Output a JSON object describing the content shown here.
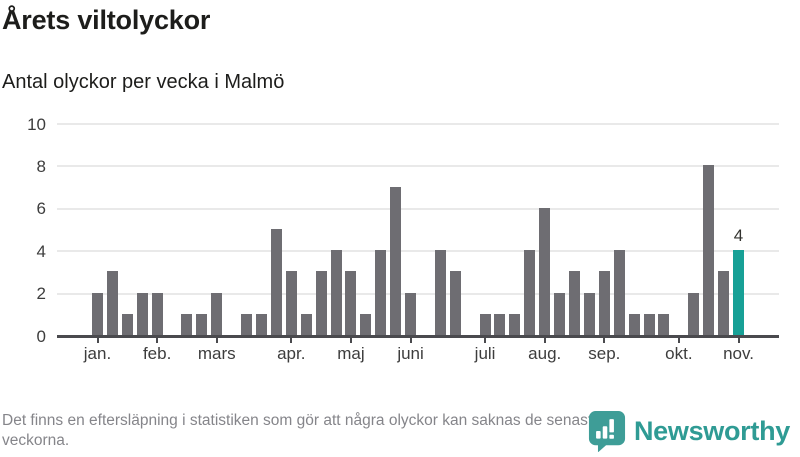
{
  "header": {
    "title": "Årets viltolyckor",
    "subtitle": "Antal olyckor per vecka i Malmö"
  },
  "chart_data": {
    "type": "bar",
    "title": "Årets viltolyckor",
    "subtitle": "Antal olyckor per vecka i Malmö",
    "ylabel": "Antal olyckor per vecka",
    "ylim": [
      0,
      10
    ],
    "yticks": [
      0,
      2,
      4,
      6,
      8,
      10
    ],
    "grid": true,
    "values": [
      2,
      3,
      1,
      2,
      2,
      0,
      1,
      1,
      2,
      0,
      1,
      1,
      5,
      3,
      1,
      3,
      4,
      3,
      1,
      4,
      7,
      2,
      0,
      4,
      3,
      0,
      1,
      1,
      1,
      4,
      6,
      2,
      3,
      2,
      3,
      4,
      1,
      1,
      1,
      0,
      2,
      8,
      3,
      4
    ],
    "month_ticks": [
      {
        "label": "jan.",
        "week_index": 0
      },
      {
        "label": "feb.",
        "week_index": 4
      },
      {
        "label": "mars",
        "week_index": 8
      },
      {
        "label": "apr.",
        "week_index": 13
      },
      {
        "label": "maj",
        "week_index": 17
      },
      {
        "label": "juni",
        "week_index": 21
      },
      {
        "label": "juli",
        "week_index": 26
      },
      {
        "label": "aug.",
        "week_index": 30
      },
      {
        "label": "sep.",
        "week_index": 34
      },
      {
        "label": "okt.",
        "week_index": 39
      },
      {
        "label": "nov.",
        "week_index": 43
      }
    ],
    "highlight_index": 43,
    "highlight_value_label": "4",
    "bar_color": "#6e6d72",
    "highlight_color": "#17a096"
  },
  "footer": {
    "note": "Det finns en eftersläpning i statistiken som gör att några olyckor kan saknas de senaste veckorna.",
    "brand_name": "Newsworthy",
    "brand_color": "#2f9b94",
    "logo_bubble_color": "#3e9d97"
  }
}
